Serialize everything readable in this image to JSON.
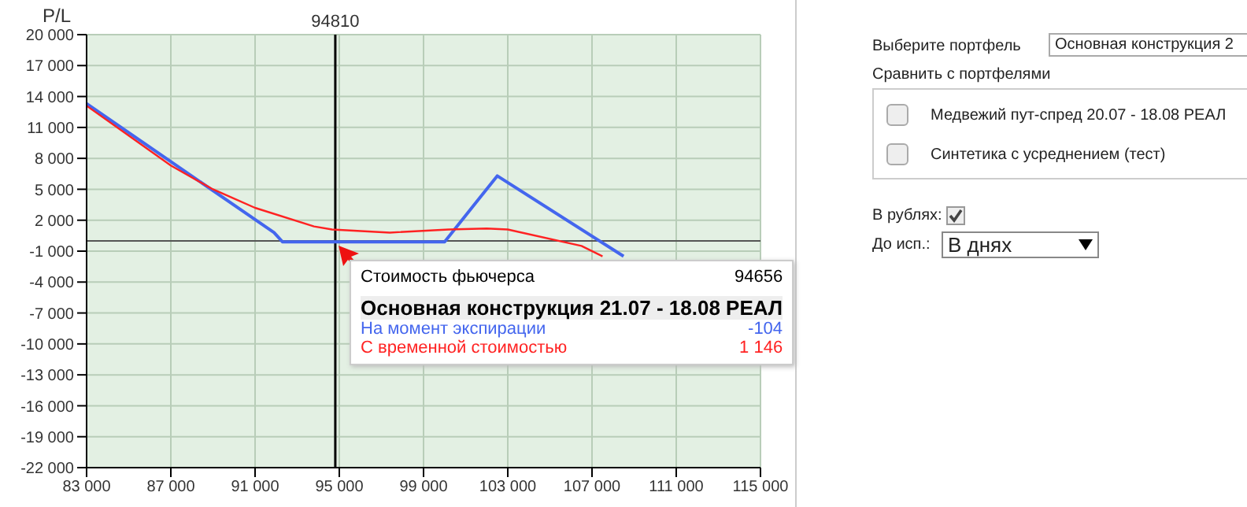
{
  "chart_data": {
    "type": "line",
    "ylabel": "P/L",
    "xlim": [
      83000,
      115000
    ],
    "xticks": [
      {
        "value": 83000,
        "label": "83 000"
      },
      {
        "value": 87000,
        "label": "87 000"
      },
      {
        "value": 91000,
        "label": "91 000"
      },
      {
        "value": 95000,
        "label": "95 000"
      },
      {
        "value": 99000,
        "label": "99 000"
      },
      {
        "value": 103000,
        "label": "103 000"
      },
      {
        "value": 107000,
        "label": "107 000"
      },
      {
        "value": 111000,
        "label": "111 000"
      },
      {
        "value": 115000,
        "label": "115 000"
      }
    ],
    "ylim": [
      -22000,
      20000
    ],
    "yticks": [
      {
        "value": -22000,
        "label": "-22 000"
      },
      {
        "value": -19000,
        "label": "-19 000"
      },
      {
        "value": -16000,
        "label": "-16 000"
      },
      {
        "value": -13000,
        "label": "-13 000"
      },
      {
        "value": -10000,
        "label": "-10 000"
      },
      {
        "value": -7000,
        "label": "-7 000"
      },
      {
        "value": -4000,
        "label": "-4 000"
      },
      {
        "value": -1000,
        "label": "-1 000"
      },
      {
        "value": 2000,
        "label": "2 000"
      },
      {
        "value": 5000,
        "label": "5 000"
      },
      {
        "value": 8000,
        "label": "8 000"
      },
      {
        "value": 11000,
        "label": "11 000"
      },
      {
        "value": 14000,
        "label": "14 000"
      },
      {
        "value": 17000,
        "label": "17 000"
      },
      {
        "value": 20000,
        "label": "20 000"
      }
    ],
    "grid": true,
    "marker": "none",
    "line_style": "solid",
    "ref_lines": [
      {
        "axis": "x",
        "value": 94810,
        "label": "94810",
        "color": "#000000"
      },
      {
        "axis": "y",
        "value": 0,
        "label": null,
        "color": "#555555"
      }
    ],
    "series": [
      {
        "name": "На момент экспирации",
        "color": "#4466ee",
        "x": [
          83000,
          91900,
          92300,
          94656,
          100000,
          102500,
          108500
        ],
        "values": [
          13300,
          800,
          -100,
          -100,
          -100,
          6300,
          -1500
        ]
      },
      {
        "name": "С временной стоимостью",
        "color": "#ff2222",
        "x": [
          83000,
          85000,
          87000,
          89000,
          91000,
          93800,
          94656,
          97400,
          100200,
          102000,
          103000,
          106500,
          107500
        ],
        "values": [
          13100,
          10200,
          7300,
          5000,
          3200,
          1400,
          1100,
          800,
          1100,
          1200,
          1100,
          -500,
          -1500
        ]
      }
    ],
    "annotations": [
      "Стоимость фьючерса",
      "94656",
      "Основная конструкция 21.07 - 18.08 РЕАЛ",
      "-104",
      "1 146",
      "Выберите портфель",
      "Основная конструкция 2",
      "Сравнить с портфелями",
      "Медвежий пут-спред 20.07 - 18.08 РЕАЛ",
      "Синтетика с усреднением (тест)",
      "В рублях:",
      "До исп.:",
      "В днях"
    ]
  }
}
